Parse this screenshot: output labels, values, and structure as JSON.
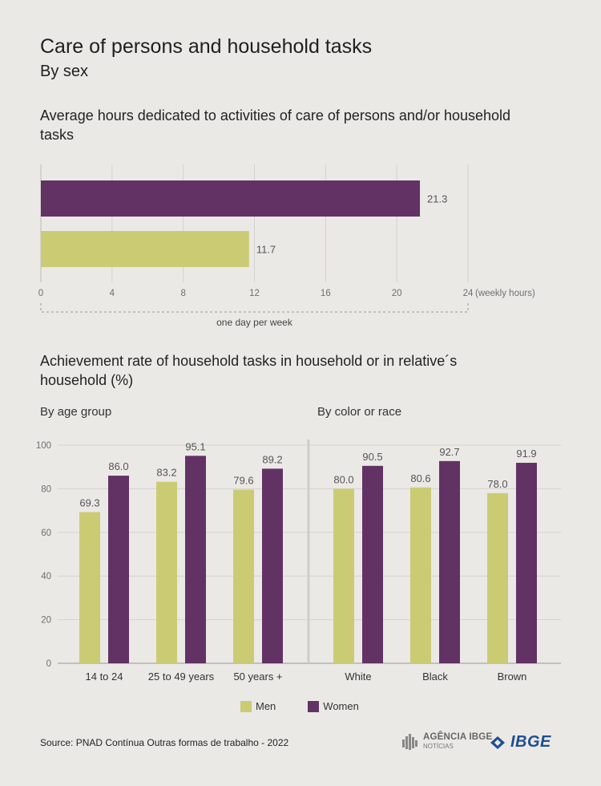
{
  "title": "Care of persons and household tasks",
  "subtitle": "By sex",
  "colors": {
    "men": "#cbcb73",
    "women": "#633265"
  },
  "chart_data": [
    {
      "type": "bar",
      "orientation": "horizontal",
      "title": "Average hours dedicated to activities of care of persons and/or household tasks",
      "series": [
        {
          "name": "Women",
          "values": [
            21.3
          ]
        },
        {
          "name": "Men",
          "values": [
            11.7
          ]
        }
      ],
      "value_labels": [
        "21.3",
        "11.7"
      ],
      "xlim": [
        0,
        24
      ],
      "xticks": [
        "0",
        "4",
        "8",
        "12",
        "16",
        "20",
        "24"
      ],
      "xunit": "(weekly hours)",
      "annotation": "one day per week",
      "grid": true
    },
    {
      "type": "bar",
      "title": "Achievement rate of household tasks in household or in relative´s household (%)",
      "panel_title": "By age group",
      "categories": [
        "14 to 24",
        "25 to 49 years",
        "50 years +"
      ],
      "series": [
        {
          "name": "Men",
          "values": [
            69.3,
            83.2,
            79.6
          ],
          "labels": [
            "69.3",
            "83.2",
            "79.6"
          ]
        },
        {
          "name": "Women",
          "values": [
            86.0,
            95.1,
            89.2
          ],
          "labels": [
            "86.0",
            "95.1",
            "89.2"
          ]
        }
      ],
      "ylim": [
        0,
        100
      ],
      "yticks": [
        "0",
        "20",
        "40",
        "60",
        "80",
        "100"
      ],
      "grid": true
    },
    {
      "type": "bar",
      "panel_title": "By color or race",
      "categories": [
        "White",
        "Black",
        "Brown"
      ],
      "series": [
        {
          "name": "Men",
          "values": [
            80.0,
            80.6,
            78.0
          ],
          "labels": [
            "80.0",
            "80.6",
            "78.0"
          ]
        },
        {
          "name": "Women",
          "values": [
            90.5,
            92.7,
            91.9
          ],
          "labels": [
            "90.5",
            "92.7",
            "91.9"
          ]
        }
      ],
      "ylim": [
        0,
        100
      ],
      "grid": true
    }
  ],
  "legend": {
    "men": "Men",
    "women": "Women"
  },
  "source": "Source: PNAD Contínua Outras formas de trabalho - 2022",
  "logos": {
    "agencia": "AGÊNCIA IBGE",
    "agencia_sub": "NOTÍCIAS",
    "ibge": "IBGE"
  }
}
